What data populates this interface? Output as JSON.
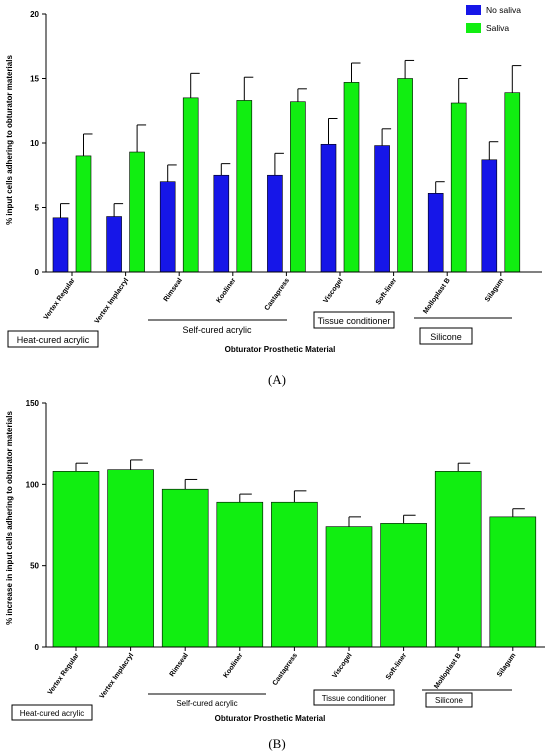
{
  "colors": {
    "no_saliva": "#1616e8",
    "saliva": "#11ee11",
    "axis": "#000000"
  },
  "chart_data": [
    {
      "type": "bar",
      "panel_label": "(A)",
      "categories": [
        "Vertex Regular",
        "Vertex Implacryl",
        "Rimseal",
        "Kooliner",
        "Castapress",
        "Viscogel",
        "Soft-liner",
        "Molloplast B",
        "Silagum"
      ],
      "series": [
        {
          "name": "No saliva",
          "values": [
            4.2,
            4.3,
            7.0,
            7.5,
            7.5,
            9.9,
            9.8,
            6.1,
            8.7
          ],
          "errors": [
            1.1,
            1.0,
            1.3,
            0.9,
            1.7,
            2.0,
            1.3,
            0.9,
            1.4
          ]
        },
        {
          "name": "Saliva",
          "values": [
            9.0,
            9.3,
            13.5,
            13.3,
            13.2,
            14.7,
            15.0,
            13.1,
            13.9
          ],
          "errors": [
            1.7,
            2.1,
            1.9,
            1.8,
            1.0,
            1.5,
            1.4,
            1.9,
            2.1
          ]
        }
      ],
      "ylim": [
        0,
        20
      ],
      "yticks": [
        "0",
        "5",
        "10",
        "15",
        "20"
      ],
      "xlabel": "Obturator Prosthetic Material",
      "ylabel": "% input cells adhering to obturator materials",
      "legend_position": "top-right",
      "groups": [
        {
          "label": "Heat-cured acrylic",
          "categories": [
            "Vertex Regular",
            "Vertex Implacryl"
          ]
        },
        {
          "label": "Self-cured acrylic",
          "categories": [
            "Rimseal",
            "Kooliner",
            "Castapress"
          ]
        },
        {
          "label": "Tissue conditioner",
          "categories": [
            "Viscogel",
            "Soft-liner"
          ]
        },
        {
          "label": "Silicone",
          "categories": [
            "Molloplast B",
            "Silagum"
          ]
        }
      ]
    },
    {
      "type": "bar",
      "panel_label": "(B)",
      "categories": [
        "Vertex Regular",
        "Vertex Implacryl",
        "Rimseal",
        "Kooliner",
        "Castapress",
        "Viscogel",
        "Soft-liner",
        "Molloplast B",
        "Silagum"
      ],
      "series": [
        {
          "values": [
            108,
            109,
            97,
            89,
            89,
            74,
            76,
            108,
            80
          ],
          "errors": [
            5,
            6,
            6,
            5,
            7,
            6,
            5,
            5,
            5
          ]
        }
      ],
      "ylim": [
        0,
        150
      ],
      "yticks": [
        "0",
        "50",
        "100",
        "150"
      ],
      "xlabel": "Obturator Prosthetic Material",
      "ylabel": "% increase in input cells adhering to obturator materials",
      "groups": [
        {
          "label": "Heat-cured acrylic",
          "categories": [
            "Vertex Regular",
            "Vertex Implacryl"
          ]
        },
        {
          "label": "Self-cured acrylic",
          "categories": [
            "Rimseal",
            "Kooliner",
            "Castapress"
          ]
        },
        {
          "label": "Tissue conditioner",
          "categories": [
            "Viscogel",
            "Soft-liner"
          ]
        },
        {
          "label": "Silicone",
          "categories": [
            "Molloplast B",
            "Silagum"
          ]
        }
      ]
    }
  ]
}
